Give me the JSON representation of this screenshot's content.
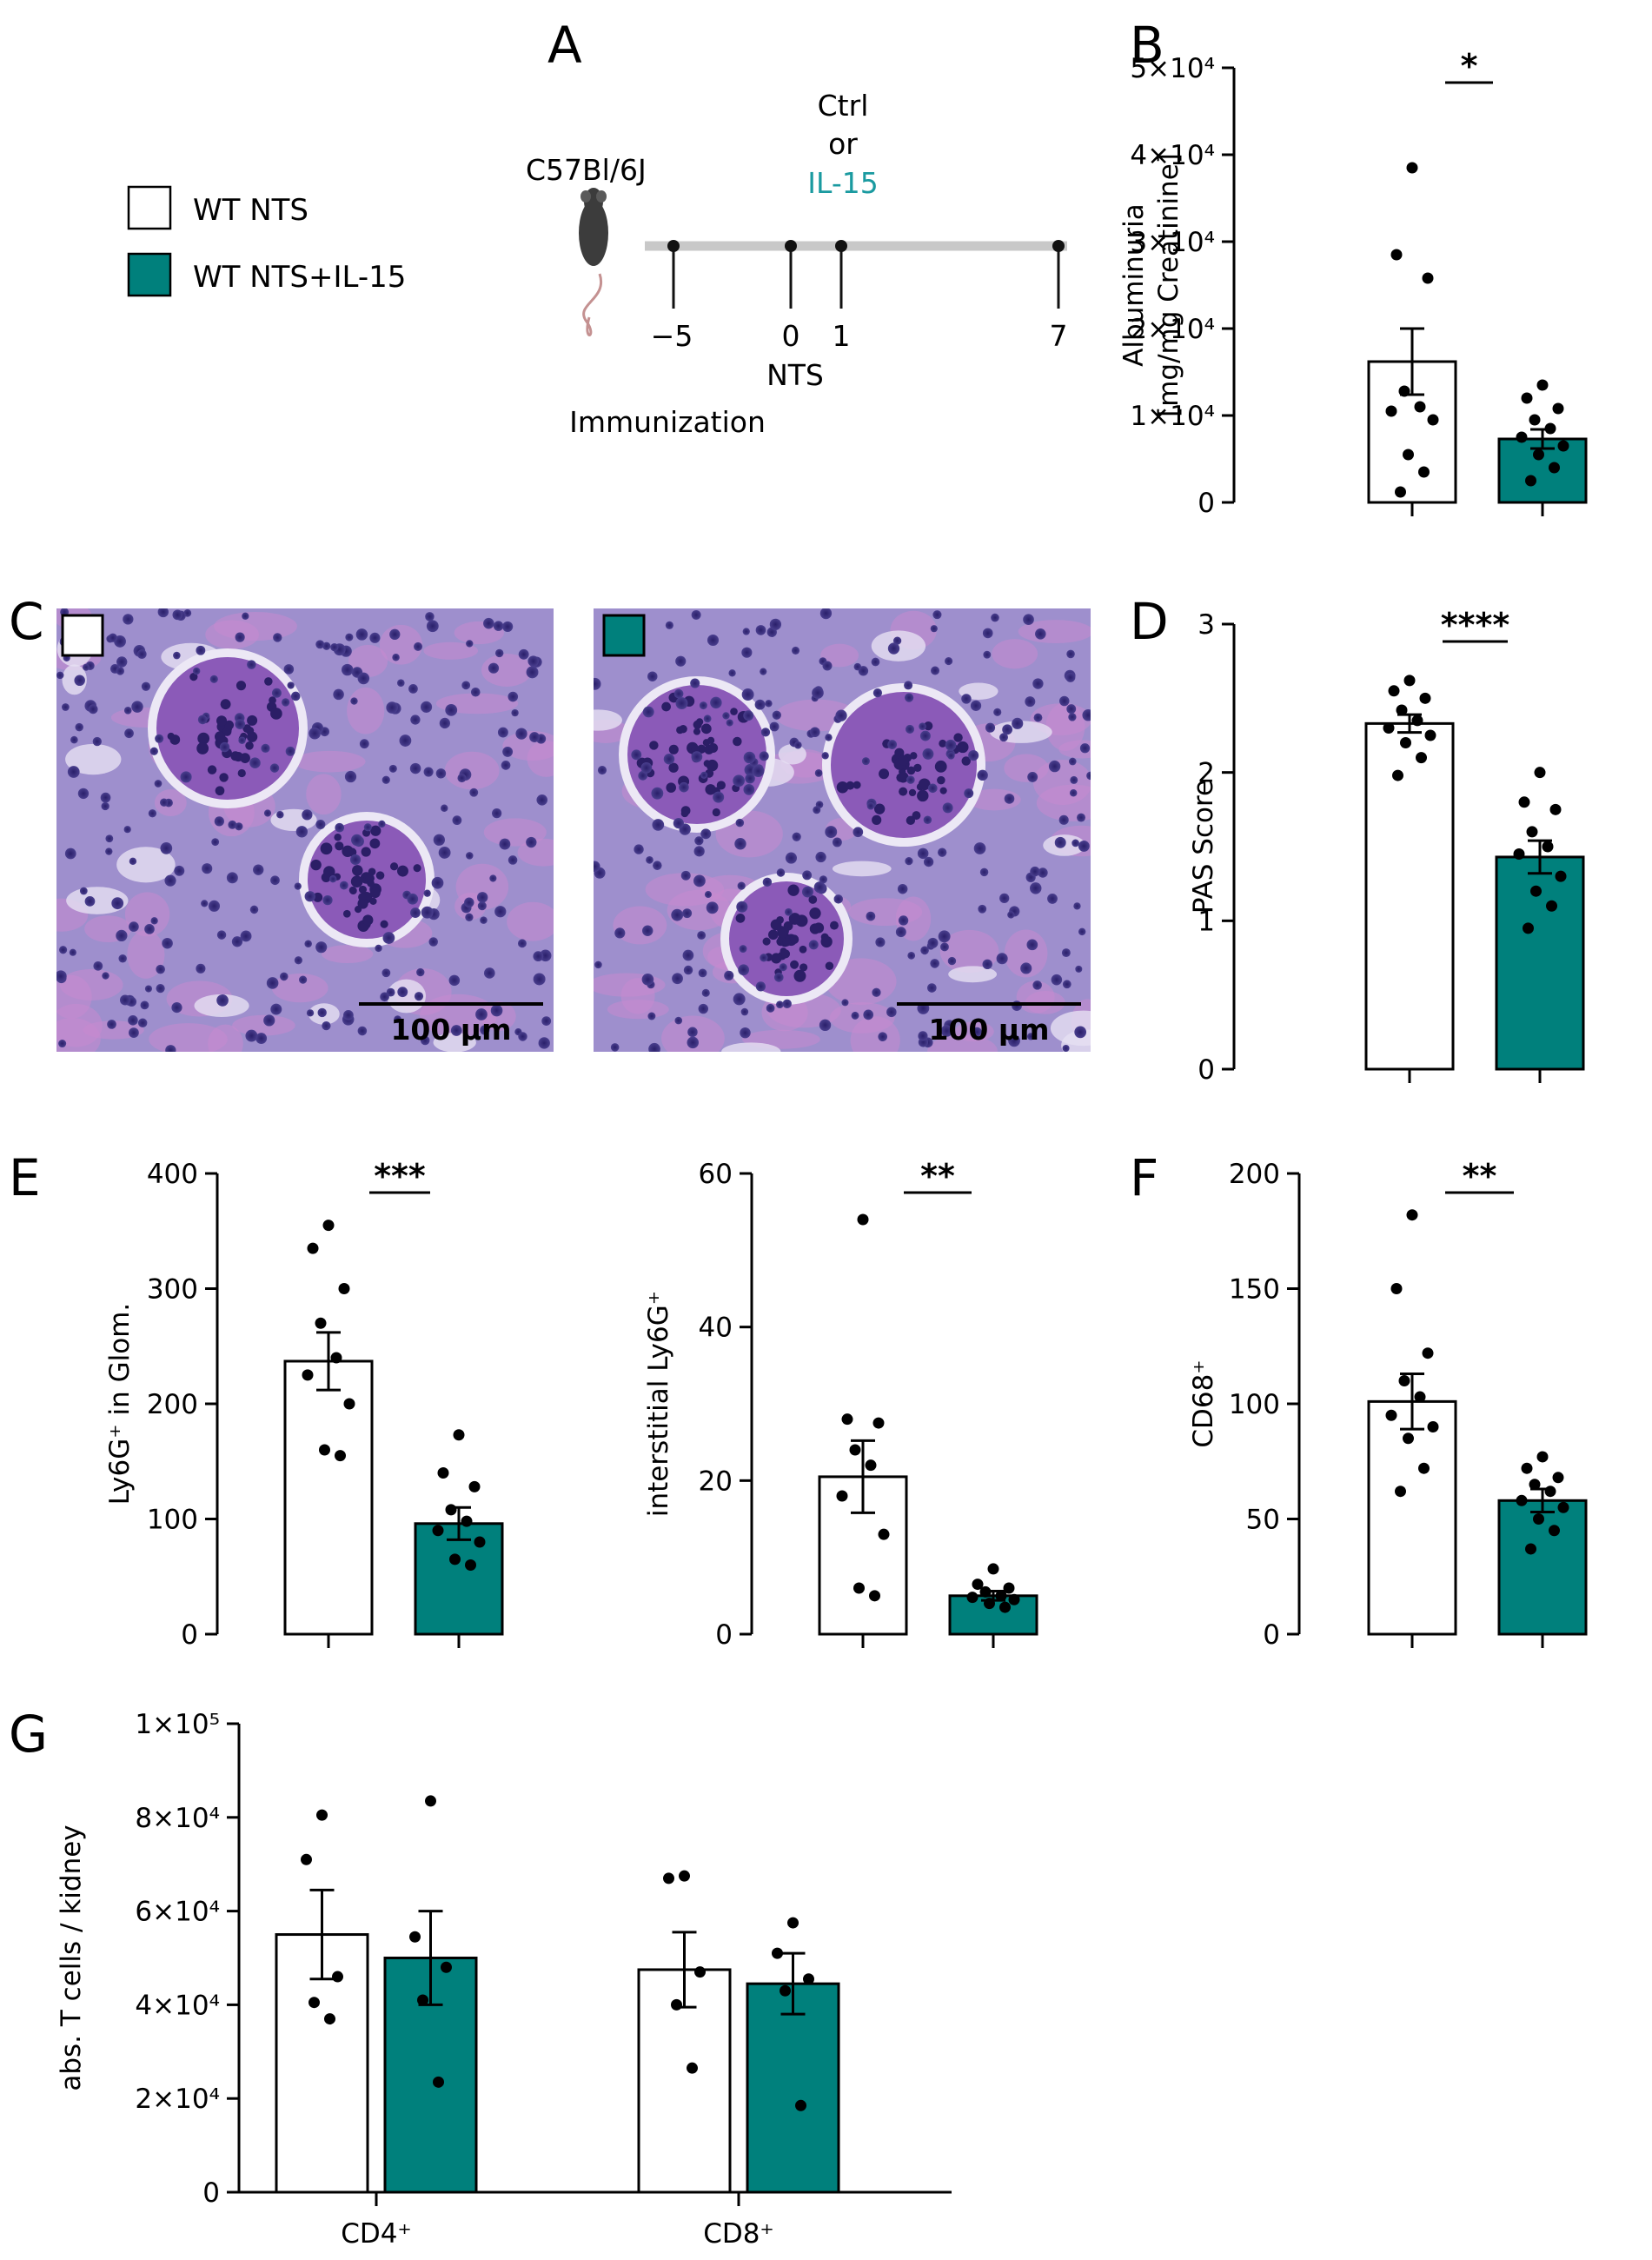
{
  "colors": {
    "ctrl": "#ffffff",
    "il15": "#00807c",
    "teal_text": "#1a9aa0",
    "axis": "#000000"
  },
  "legend": {
    "items": [
      {
        "label": "WT NTS",
        "color": "#ffffff"
      },
      {
        "label": "WT NTS+IL-15",
        "color": "#00807c"
      }
    ]
  },
  "panel_a": {
    "letter": "A",
    "strain": "C57Bl/6J",
    "treatment_line1": "Ctrl",
    "treatment_line2": "or",
    "treatment_line3": "IL-15",
    "timepoints": [
      "−5",
      "0",
      "1",
      "7"
    ],
    "nts_label": "NTS",
    "immunization_label": "Immunization",
    "mouse_icon": "mouse-icon"
  },
  "panel_c": {
    "letter": "C",
    "images": [
      {
        "group": "WT NTS",
        "scale_bar": "100 µm"
      },
      {
        "group": "WT NTS+IL-15",
        "scale_bar": "100 µm"
      }
    ]
  },
  "chart_data": [
    {
      "id": "B",
      "letter": "B",
      "type": "bar",
      "categories": [
        "WT NTS",
        "WT NTS+IL-15"
      ],
      "values": [
        16200,
        7300
      ],
      "sem": [
        3800,
        1100
      ],
      "points": [
        [
          38500,
          28500,
          25800,
          12800,
          11000,
          10500,
          9500,
          5500,
          3500,
          1200
        ],
        [
          13500,
          12000,
          10800,
          9500,
          8500,
          7500,
          6500,
          5500,
          4000,
          2500
        ]
      ],
      "ylim": [
        0,
        50000
      ],
      "yticks": [
        0,
        10000,
        20000,
        30000,
        40000,
        50000
      ],
      "ytick_labels": [
        "0",
        "1×10⁴",
        "2×10⁴",
        "3×10⁴",
        "4×10⁴",
        "5×10⁴"
      ],
      "ylabel": [
        "Albuminuria",
        "[mg/mg Creatinine]"
      ],
      "xlabel": "",
      "significance": "*"
    },
    {
      "id": "D",
      "letter": "D",
      "type": "bar",
      "categories": [
        "WT NTS",
        "WT NTS+IL-15"
      ],
      "values": [
        2.33,
        1.43
      ],
      "sem": [
        0.06,
        0.11
      ],
      "points": [
        [
          2.62,
          2.55,
          2.5,
          2.42,
          2.35,
          2.3,
          2.25,
          2.2,
          2.1,
          1.98
        ],
        [
          2.0,
          1.8,
          1.75,
          1.6,
          1.5,
          1.45,
          1.3,
          1.2,
          1.1,
          0.95
        ]
      ],
      "ylim": [
        0,
        3
      ],
      "yticks": [
        0,
        1,
        2,
        3
      ],
      "ytick_labels": [
        "0",
        "1",
        "2",
        "3"
      ],
      "ylabel": [
        "PAS Score"
      ],
      "xlabel": "",
      "significance": "****"
    },
    {
      "id": "E1",
      "letter": "E",
      "type": "bar",
      "categories": [
        "WT NTS",
        "WT NTS+IL-15"
      ],
      "values": [
        237,
        96
      ],
      "sem": [
        25,
        14
      ],
      "points": [
        [
          355,
          335,
          300,
          270,
          240,
          225,
          200,
          160,
          155
        ],
        [
          173,
          140,
          128,
          108,
          98,
          90,
          80,
          65,
          60
        ]
      ],
      "ylim": [
        0,
        400
      ],
      "yticks": [
        0,
        100,
        200,
        300,
        400
      ],
      "ytick_labels": [
        "0",
        "100",
        "200",
        "300",
        "400"
      ],
      "ylabel": [
        "Ly6G⁺ in Glom."
      ],
      "xlabel": "",
      "significance": "***"
    },
    {
      "id": "E2",
      "letter": "",
      "type": "bar",
      "categories": [
        "WT NTS",
        "WT NTS+IL-15"
      ],
      "values": [
        20.5,
        5.0
      ],
      "sem": [
        4.7,
        0.6
      ],
      "points": [
        [
          54,
          28,
          27.5,
          24,
          22,
          18,
          13,
          6,
          5
        ],
        [
          8.5,
          6.5,
          6.0,
          5.5,
          5.0,
          4.8,
          4.5,
          4.0,
          3.5
        ]
      ],
      "ylim": [
        0,
        60
      ],
      "yticks": [
        0,
        20,
        40,
        60
      ],
      "ytick_labels": [
        "0",
        "20",
        "40",
        "60"
      ],
      "ylabel": [
        "interstitial Ly6G⁺"
      ],
      "xlabel": "",
      "significance": "**"
    },
    {
      "id": "F",
      "letter": "F",
      "type": "bar",
      "categories": [
        "WT NTS",
        "WT NTS+IL-15"
      ],
      "values": [
        101,
        58
      ],
      "sem": [
        12,
        5
      ],
      "points": [
        [
          182,
          150,
          122,
          110,
          103,
          95,
          90,
          85,
          72,
          62
        ],
        [
          77,
          72,
          68,
          65,
          62,
          58,
          55,
          50,
          45,
          37
        ]
      ],
      "ylim": [
        0,
        200
      ],
      "yticks": [
        0,
        50,
        100,
        150,
        200
      ],
      "ytick_labels": [
        "0",
        "50",
        "100",
        "150",
        "200"
      ],
      "ylabel": [
        "CD68⁺"
      ],
      "xlabel": "",
      "significance": "**"
    },
    {
      "id": "G",
      "letter": "G",
      "type": "bar",
      "categories": [
        "CD4⁺",
        "CD8⁺"
      ],
      "series": [
        {
          "name": "WT NTS",
          "values": [
            55000,
            47500
          ],
          "sem": [
            9500,
            8000
          ],
          "points": [
            [
              80500,
              71000,
              46000,
              40500,
              37000
            ],
            [
              67500,
              67000,
              47000,
              40000,
              26500
            ]
          ]
        },
        {
          "name": "WT NTS+IL-15",
          "values": [
            50000,
            44500
          ],
          "sem": [
            10000,
            6500
          ],
          "points": [
            [
              83500,
              54500,
              48000,
              41000,
              23500
            ],
            [
              57500,
              51000,
              45500,
              43000,
              18500
            ]
          ]
        }
      ],
      "ylim": [
        0,
        100000
      ],
      "yticks": [
        0,
        20000,
        40000,
        60000,
        80000,
        100000
      ],
      "ytick_labels": [
        "0",
        "2×10⁴",
        "4×10⁴",
        "6×10⁴",
        "8×10⁴",
        "1×10⁵"
      ],
      "ylabel": [
        "abs. T cells / kidney"
      ],
      "xlabel": ""
    }
  ]
}
